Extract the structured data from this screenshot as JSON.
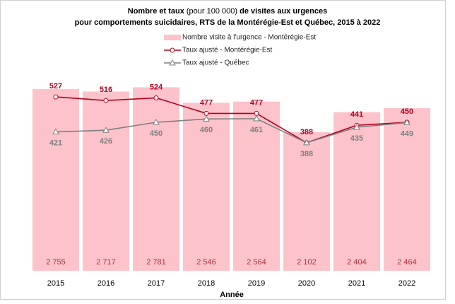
{
  "chart_data": {
    "type": "bar-line",
    "title": [
      "Nombre et taux",
      "(pour 100 000)",
      "de visites aux urgences",
      "pour comportements suicidaires, RTS de la Montérégie-Est et Québec, 2015 à 2022"
    ],
    "x_label": "Année",
    "categories": [
      "2015",
      "2016",
      "2017",
      "2018",
      "2019",
      "2020",
      "2021",
      "2022"
    ],
    "ylim": [
      0,
      3000
    ],
    "y2lim": [
      0,
      600
    ],
    "series": [
      {
        "name": "Nombre visite à l'urgence - Montérégie-Est",
        "type": "bar",
        "color": "#fcc3cb",
        "label_color": "#a8323e",
        "values": [
          2755,
          2717,
          2781,
          2546,
          2564,
          2102,
          2404,
          2464
        ],
        "value_labels": [
          "2 755",
          "2 717",
          "2 781",
          "2 546",
          "2 564",
          "2 102",
          "2 404",
          "2 464"
        ]
      },
      {
        "name": "Taux ajusté - Montérégie-Est",
        "type": "line",
        "axis": "y2",
        "marker": "circle",
        "color": "#b5001e",
        "values": [
          527,
          516,
          524,
          477,
          477,
          388,
          441,
          450
        ]
      },
      {
        "name": "Taux ajusté - Québec",
        "type": "line",
        "axis": "y2",
        "marker": "triangle",
        "color": "#808080",
        "values": [
          421,
          426,
          450,
          460,
          461,
          388,
          435,
          449
        ]
      }
    ]
  }
}
